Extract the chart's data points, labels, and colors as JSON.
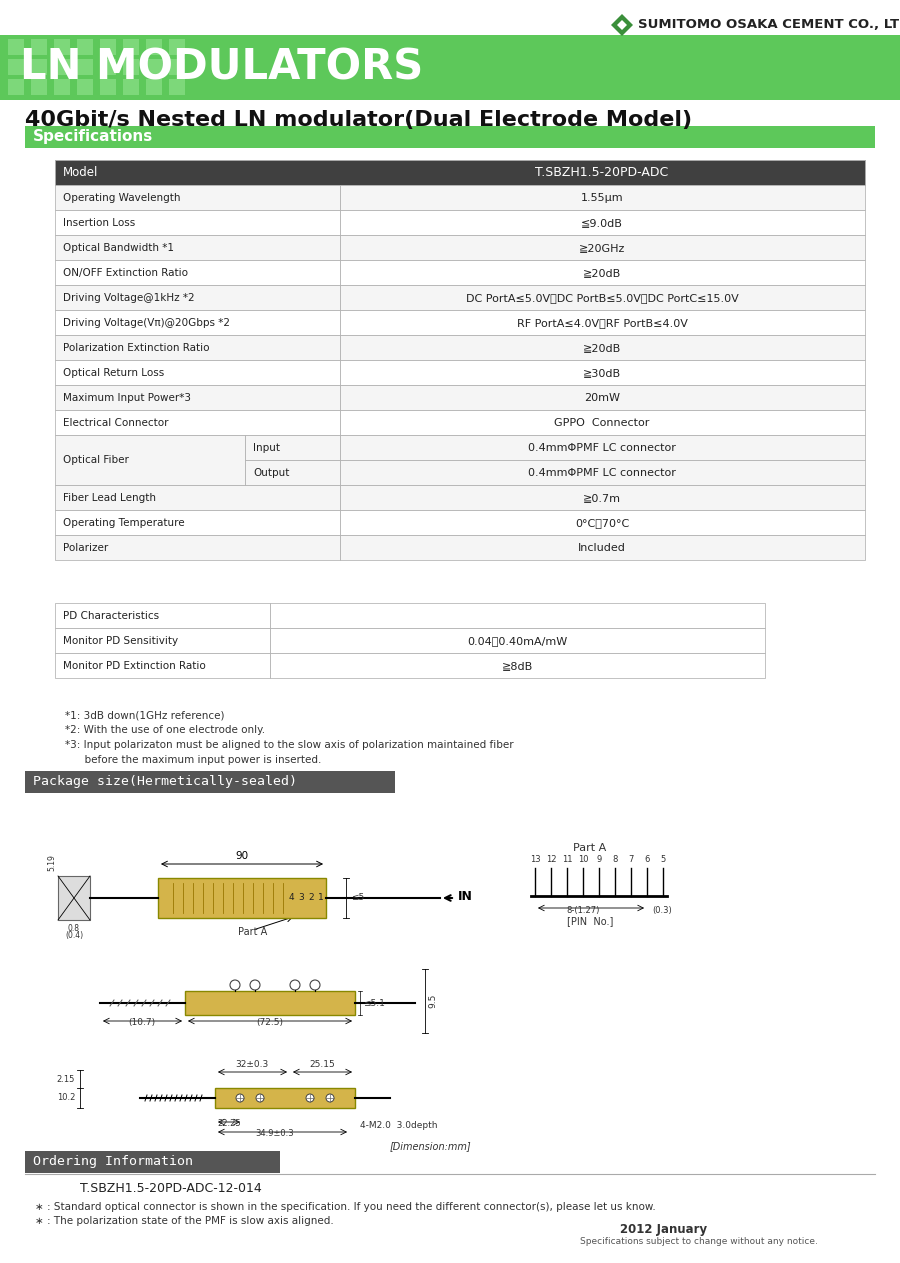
{
  "company_name": "SUMITOMO OSAKA CEMENT CO., LTD",
  "header_banner_text": "LN MODULATORS",
  "header_bg_color": "#5dc85a",
  "product_title": "40Gbit/s Nested LN modulator(Dual Electrode Model)",
  "section_specs": "Specifications",
  "section_package": "Package size(Hermetically-sealed)",
  "section_ordering": "Ordering Information",
  "spec_rows": [
    [
      "Model",
      "T.SBZH1.5-20PD-ADC"
    ],
    [
      "Operating Wavelength",
      "1.55μm"
    ],
    [
      "Insertion Loss",
      "≦9.0dB"
    ],
    [
      "Optical Bandwidth *1",
      "≧20GHz"
    ],
    [
      "ON/OFF Extinction Ratio",
      "≧20dB"
    ],
    [
      "Driving Voltage@1kHz *2",
      "DC PortA≤5.0V、DC PortB≤5.0V、DC PortC≤15.0V"
    ],
    [
      "Driving Voltage(Vπ)@20Gbps *2",
      "RF PortA≤4.0V、RF PortB≤4.0V"
    ],
    [
      "Polarization Extinction Ratio",
      "≧20dB"
    ],
    [
      "Optical Return Loss",
      "≧30dB"
    ],
    [
      "Maximum Input Power*3",
      "20mW"
    ],
    [
      "Electrical Connector",
      "GPPO  Connector"
    ],
    [
      "Optical Fiber | Input",
      "0.4mmΦPMF LC connector"
    ],
    [
      "Optical Fiber | Output",
      "0.4mmΦPMF LC connector"
    ],
    [
      "Fiber Lead Length",
      "≧0.7m"
    ],
    [
      "Operating Temperature",
      "0°C～70°C"
    ],
    [
      "Polarizer",
      "Included"
    ]
  ],
  "pd_rows": [
    [
      "PD Characteristics",
      ""
    ],
    [
      "Monitor PD Sensitivity",
      "0.04～0.40mA/mW"
    ],
    [
      "Monitor PD Extinction Ratio",
      "≧8dB"
    ]
  ],
  "footnotes": [
    "*1: 3dB down(1GHz reference)",
    "*2: With the use of one electrode only.",
    "*3: Input polarizaton must be aligned to the slow axis of polarization maintained fiber",
    "      before the maximum input power is inserted."
  ],
  "ordering_model": "T.SBZH1.5-20PD-ADC-12-014",
  "ordering_notes": [
    "∗ : Standard optical connector is shown in the specification. If you need the different connector(s), please let us know.",
    "∗ : The polarization state of the PMF is slow axis aligned."
  ],
  "footer_year": "2012 January",
  "footer_note": "Specifications subject to change without any notice.",
  "table_header_bg": "#404040",
  "table_header_fg": "#ffffff",
  "table_row_bg1": "#ffffff",
  "table_row_bg2": "#f5f5f5",
  "table_border": "#aaaaaa",
  "spec_section_bg": "#5dc85a",
  "spec_section_fg": "#ffffff",
  "banner_grid_color": "#7dd87a"
}
